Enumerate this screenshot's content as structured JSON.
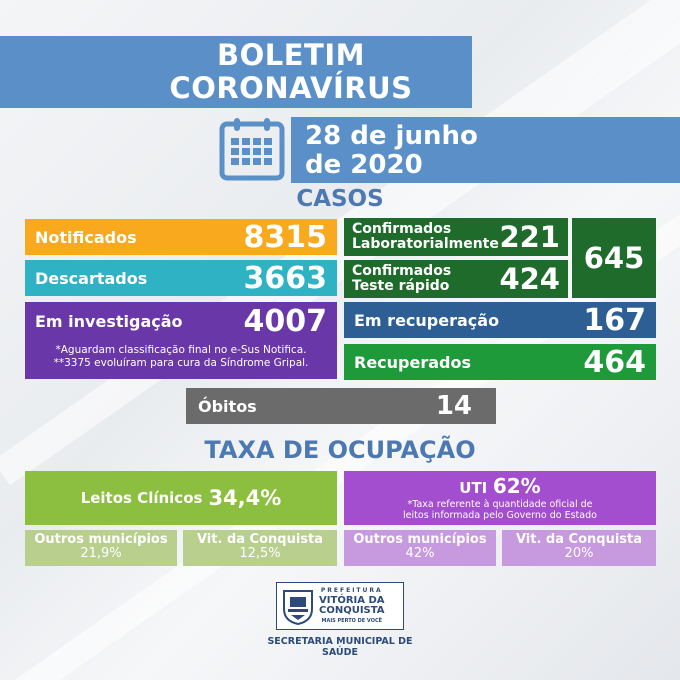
{
  "header": {
    "title_line1": "BOLETIM",
    "title_line2": "CORONAVÍRUS",
    "date_line1": "28 de junho",
    "date_line2": "de 2020"
  },
  "casos": {
    "title": "CASOS",
    "notificados": {
      "label": "Notificados",
      "value": "8315"
    },
    "descartados": {
      "label": "Descartados",
      "value": "3663"
    },
    "em_investigacao": {
      "label": "Em investigação",
      "value": "4007"
    },
    "notes": [
      "*Aguardam classificação final no e-Sus Notifica.",
      "**3375 evoluíram para cura da Síndrome Gripal."
    ],
    "confirmados_lab": {
      "label_line1": "Confirmados",
      "label_line2": "Laboratorialmente",
      "value": "221"
    },
    "confirmados_rapido": {
      "label_line1": "Confirmados",
      "label_line2": "Teste rápido",
      "value": "424"
    },
    "confirmados_total": "645",
    "em_recuperacao": {
      "label": "Em recuperação",
      "value": "167"
    },
    "recuperados": {
      "label": "Recuperados",
      "value": "464"
    },
    "obitos": {
      "label": "Óbitos",
      "value": "14"
    }
  },
  "ocupacao": {
    "title": "TAXA DE OCUPAÇÃO",
    "leitos_clinicos": {
      "label": "Leitos Clínicos",
      "value": "34,4%"
    },
    "leitos_outros": {
      "label": "Outros municípios",
      "value": "21,9%"
    },
    "leitos_vit": {
      "label": "Vit. da Conquista",
      "value": "12,5%"
    },
    "uti": {
      "label": "UTI",
      "value": "62%"
    },
    "uti_note_line1": "*Taxa referente à quantidade oficial de",
    "uti_note_line2": "leitos informada pelo Governo do Estado",
    "uti_outros": {
      "label": "Outros municípios",
      "value": "42%"
    },
    "uti_vit": {
      "label": "Vit. da Conquista",
      "value": "20%"
    }
  },
  "footer": {
    "logo_line1": "PREFEITURA",
    "logo_line2": "VITÓRIA DA",
    "logo_line3": "CONQUISTA",
    "logo_tagline": "MAIS PERTO DE VOCÊ",
    "secretaria_line1": "SECRETARIA MUNICIPAL DE",
    "secretaria_line2": "SAÚDE"
  },
  "colors": {
    "blue": "#5b8fc7",
    "orange": "#f8a91d",
    "teal": "#2fb3c4",
    "purple": "#6a37a8",
    "dark_green": "#1f6b2b",
    "navy": "#2d5f94",
    "green": "#1f9a3a",
    "gray": "#6b6b6b",
    "lime": "#8cbf3f",
    "light_lime": "#b9cf8d",
    "violet": "#a24ecf",
    "light_violet": "#c79adf"
  }
}
